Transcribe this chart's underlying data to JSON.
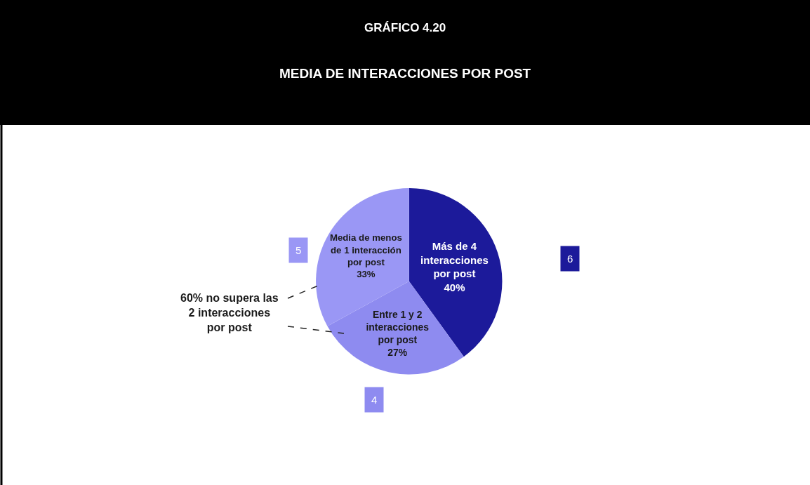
{
  "chart_data": {
    "type": "pie",
    "title": "GRÁFICO 4.20",
    "subtitle": "MEDIA DE INTERACCIONES POR POST",
    "categories": [
      "Más de 4 interacciones por post",
      "Entre 1 y 2 interacciones por post",
      "Media de menos de 1 interacción por post"
    ],
    "values": [
      40,
      27,
      33
    ],
    "value_labels": [
      "40%",
      "27%",
      "33%"
    ],
    "colors": [
      "#1c1a9a",
      "#8e8bf0",
      "#9a97f5"
    ],
    "annotations": [
      "6",
      "4",
      "5",
      "60% no supera las 2 interacciones por post"
    ],
    "legend": false
  }
}
